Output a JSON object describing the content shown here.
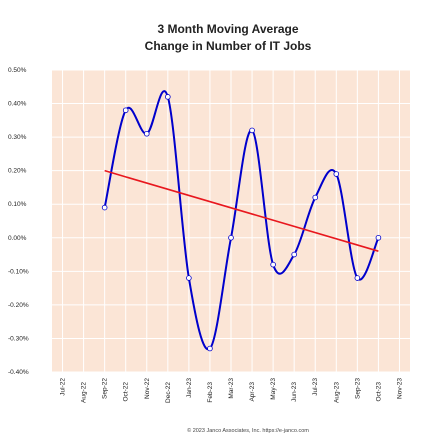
{
  "chart_data": {
    "type": "line",
    "title": "3 Month Moving Average",
    "subtitle": "Change in Number of IT Jobs",
    "source": "© 2023 Janco Associates, Inc. https://e-janco.com",
    "categories": [
      "Jul-22",
      "Aug-22",
      "Sep-22",
      "Oct-22",
      "Nov-22",
      "Dec-22",
      "Jan-23",
      "Feb-23",
      "Mar-23",
      "Apr-23",
      "May-23",
      "Jun-23",
      "Jul-23",
      "Aug-23",
      "Sep-23",
      "Oct-23",
      "Nov-23"
    ],
    "series": [
      {
        "color": "#0000cc",
        "values": [
          null,
          null,
          0.09,
          0.38,
          0.31,
          0.42,
          -0.12,
          -0.33,
          0.0,
          0.32,
          -0.08,
          -0.05,
          0.12,
          0.19,
          -0.12,
          0.0,
          null
        ]
      }
    ],
    "trend": {
      "color": "#e8171e",
      "x": [
        "Sep-22",
        "Oct-23"
      ],
      "values": [
        0.2,
        -0.04
      ]
    },
    "ylim": [
      -0.4,
      0.5
    ],
    "yticks": [
      {
        "value": -0.4,
        "label": "-0.40%"
      },
      {
        "value": -0.3,
        "label": "-0.30%"
      },
      {
        "value": -0.2,
        "label": "-0.20%"
      },
      {
        "value": -0.1,
        "label": "-0.10%"
      },
      {
        "value": 0,
        "label": "0.00%"
      },
      {
        "value": 0.1,
        "label": "0.10%"
      },
      {
        "value": 0.2,
        "label": "0.20%"
      },
      {
        "value": 0.3,
        "label": "0.30%"
      },
      {
        "value": 0.4,
        "label": "0.40%"
      },
      {
        "value": 0.5,
        "label": "0.50%"
      }
    ],
    "plot_background": "#fbe5d6",
    "grid": true
  }
}
